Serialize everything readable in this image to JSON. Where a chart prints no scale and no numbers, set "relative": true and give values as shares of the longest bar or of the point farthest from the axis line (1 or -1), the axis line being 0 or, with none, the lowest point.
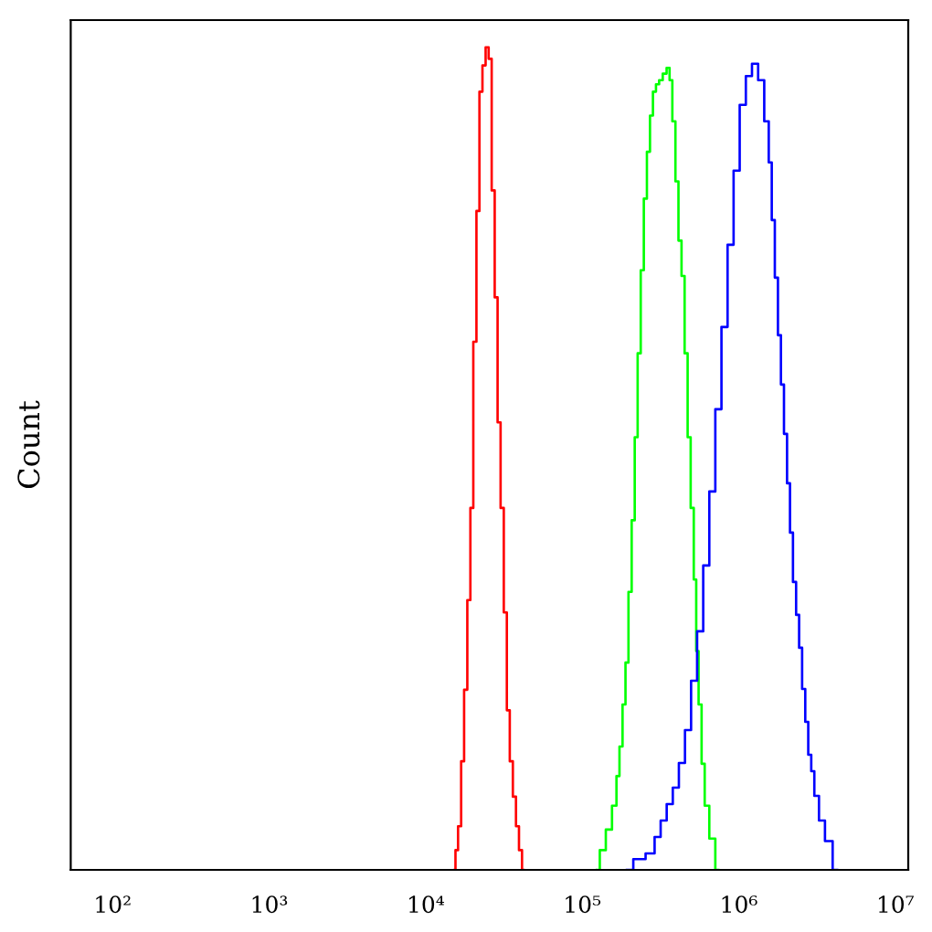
{
  "chart_data": {
    "type": "step",
    "ylabel": "Count",
    "relative": true,
    "log": "x",
    "tick_labels": "x",
    "xlim": [
      54,
      12100000
    ],
    "xticks": [
      {
        "value": 100,
        "label": "10²"
      },
      {
        "value": 1000,
        "label": "10³"
      },
      {
        "value": 10000,
        "label": "10⁴"
      },
      {
        "value": 100000,
        "label": "10⁵"
      },
      {
        "value": 1000000,
        "label": "10⁶"
      },
      {
        "value": 10000000,
        "label": "10⁷"
      }
    ],
    "series": [
      {
        "color": "#ff0000",
        "x": [
          15300,
          15700,
          16500,
          17200,
          18000,
          18900,
          19700,
          20600,
          21600,
          22500,
          23600,
          24700,
          25800,
          27000,
          28200,
          29400,
          30800,
          32300,
          33700,
          35200,
          36900,
          38600,
          40300,
          42200
        ],
        "values": [
          0,
          0.024,
          0.053,
          0.132,
          0.219,
          0.328,
          0.44,
          0.642,
          0.801,
          0.946,
          0.978,
          1,
          0.986,
          0.826,
          0.696,
          0.544,
          0.44,
          0.313,
          0.194,
          0.132,
          0.089,
          0.053,
          0.024,
          0
        ]
      },
      {
        "color": "#00ff00",
        "x": [
          124000,
          135000,
          148000,
          162000,
          169000,
          177000,
          185000,
          193000,
          202000,
          212000,
          221000,
          231000,
          242000,
          253000,
          265000,
          277000,
          289000,
          303000,
          317000,
          337000,
          355000,
          368000,
          385000,
          403000,
          421000,
          441000,
          461000,
          482000,
          504000,
          528000,
          542000,
          566000,
          592000,
          620000,
          677000,
          740000
        ],
        "values": [
          0,
          0.024,
          0.049,
          0.078,
          0.114,
          0.15,
          0.201,
          0.252,
          0.338,
          0.425,
          0.526,
          0.628,
          0.729,
          0.816,
          0.873,
          0.917,
          0.946,
          0.955,
          0.96,
          0.968,
          0.975,
          0.96,
          0.91,
          0.837,
          0.765,
          0.722,
          0.628,
          0.526,
          0.44,
          0.353,
          0.266,
          0.201,
          0.129,
          0.078,
          0.038,
          0
        ]
      },
      {
        "color": "#0000ff",
        "x": [
          193000,
          231000,
          277000,
          303000,
          331000,
          362000,
          396000,
          433000,
          474000,
          518000,
          566000,
          620000,
          677000,
          740000,
          811000,
          886000,
          968000,
          1060000,
          1160000,
          1270000,
          1390000,
          1520000,
          1590000,
          1660000,
          1740000,
          1820000,
          1900000,
          1990000,
          2080000,
          2170000,
          2270000,
          2380000,
          2480000,
          2600000,
          2720000,
          2840000,
          2970000,
          3110000,
          3400000,
          3710000,
          4250000
        ],
        "values": [
          0,
          0.013,
          0.02,
          0.04,
          0.06,
          0.08,
          0.1,
          0.13,
          0.17,
          0.23,
          0.29,
          0.37,
          0.46,
          0.56,
          0.66,
          0.76,
          0.85,
          0.93,
          0.965,
          0.98,
          0.96,
          0.91,
          0.86,
          0.79,
          0.72,
          0.65,
          0.59,
          0.53,
          0.47,
          0.41,
          0.35,
          0.31,
          0.27,
          0.22,
          0.18,
          0.14,
          0.12,
          0.09,
          0.06,
          0.035,
          0
        ]
      }
    ]
  }
}
